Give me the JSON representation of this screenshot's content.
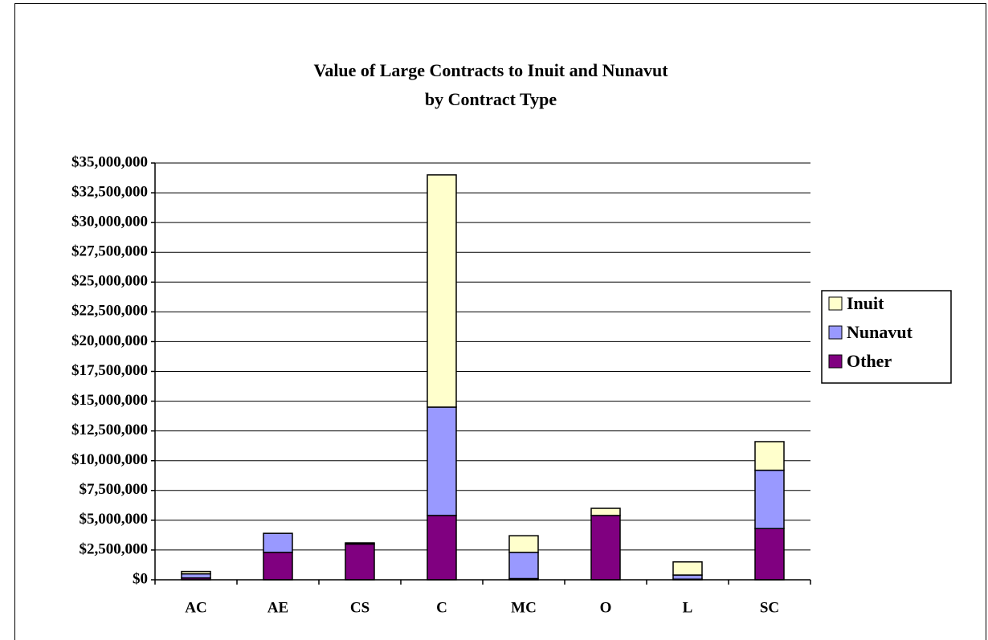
{
  "chart_data": {
    "type": "stacked_bar",
    "title": "Value of Large Contracts to Inuit and Nunavut",
    "subtitle": "by Contract Type",
    "categories": [
      "AC",
      "AE",
      "CS",
      "C",
      "MC",
      "O",
      "L",
      "SC"
    ],
    "series": [
      {
        "name": "Other",
        "color": "#800080",
        "values": [
          150000,
          2300000,
          3000000,
          5400000,
          100000,
          5400000,
          50000,
          4300000
        ]
      },
      {
        "name": "Nunavut",
        "color": "#9999ff",
        "values": [
          350000,
          1600000,
          100000,
          9100000,
          2200000,
          0,
          350000,
          4900000
        ]
      },
      {
        "name": "Inuit",
        "color": "#ffffcc",
        "values": [
          200000,
          0,
          0,
          19500000,
          1400000,
          600000,
          1100000,
          2400000
        ]
      }
    ],
    "ylim": [
      0,
      35000000
    ],
    "yticks": [
      {
        "value": 0,
        "label": "$0"
      },
      {
        "value": 2500000,
        "label": "$2,500,000"
      },
      {
        "value": 5000000,
        "label": "$5,000,000"
      },
      {
        "value": 7500000,
        "label": "$7,500,000"
      },
      {
        "value": 10000000,
        "label": "$10,000,000"
      },
      {
        "value": 12500000,
        "label": "$12,500,000"
      },
      {
        "value": 15000000,
        "label": "$15,000,000"
      },
      {
        "value": 17500000,
        "label": "$17,500,000"
      },
      {
        "value": 20000000,
        "label": "$20,000,000"
      },
      {
        "value": 22500000,
        "label": "$22,500,000"
      },
      {
        "value": 25000000,
        "label": "$25,000,000"
      },
      {
        "value": 27500000,
        "label": "$27,500,000"
      },
      {
        "value": 30000000,
        "label": "$30,000,000"
      },
      {
        "value": 32500000,
        "label": "$32,500,000"
      },
      {
        "value": 35000000,
        "label": "$35,000,000"
      }
    ],
    "grid": true,
    "legend": "right"
  }
}
